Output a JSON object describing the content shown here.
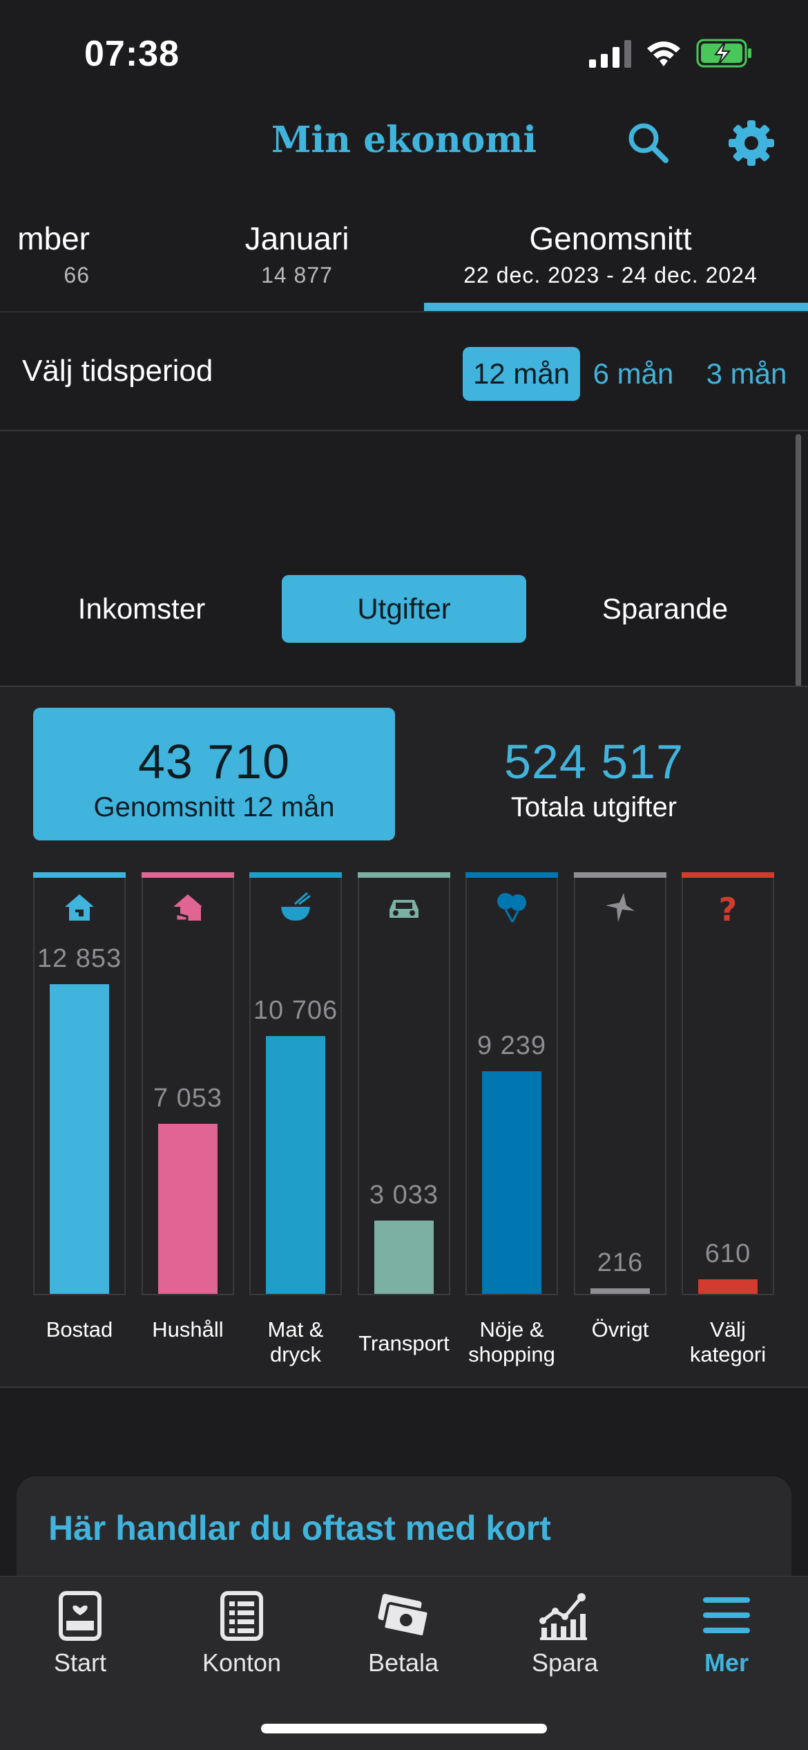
{
  "status_bar": {
    "time": "07:38"
  },
  "header": {
    "title": "Min ekonomi"
  },
  "month_tabs": [
    {
      "name": "mber",
      "value": "66"
    },
    {
      "name": "Januari",
      "value": "14 877"
    },
    {
      "name": "Genomsnitt",
      "value": "22 dec. 2023  -  24 dec. 2024"
    }
  ],
  "period": {
    "label": "Välj tidsperiod",
    "options": [
      "12 mån",
      "6 mån",
      "3 mån"
    ],
    "selected": "12 mån"
  },
  "segments": [
    "Inkomster",
    "Utgifter",
    "Sparande"
  ],
  "summary": {
    "average_value": "43 710",
    "average_label": "Genomsnitt 12 mån",
    "total_value": "524 517",
    "total_label": "Totala utgifter"
  },
  "chart_data": {
    "type": "bar",
    "categories": [
      "Bostad",
      "Hushåll",
      "Mat & dryck",
      "Transport",
      "Nöje & shopping",
      "Övrigt",
      "Välj kategori"
    ],
    "values": [
      12853,
      7053,
      10706,
      3033,
      9239,
      216,
      610
    ],
    "value_labels": [
      "12 853",
      "7 053",
      "10 706",
      "3 033",
      "9 239",
      "216",
      "610"
    ],
    "colors": [
      "#40b4dc",
      "#e06594",
      "#1e9ec8",
      "#7bb0a2",
      "#0077b0",
      "#8e8e93",
      "#d23c2e"
    ],
    "icons": [
      "house-icon",
      "household-icon",
      "bowl-icon",
      "car-icon",
      "balloons-icon",
      "origami-bird-icon",
      "question-icon"
    ]
  },
  "teaser": {
    "title": "Här handlar du oftast med kort"
  },
  "tabbar": [
    {
      "label": "Start",
      "icon": "start-icon"
    },
    {
      "label": "Konton",
      "icon": "accounts-icon"
    },
    {
      "label": "Betala",
      "icon": "pay-icon"
    },
    {
      "label": "Spara",
      "icon": "save-chart-icon"
    },
    {
      "label": "Mer",
      "icon": "menu-icon"
    }
  ]
}
